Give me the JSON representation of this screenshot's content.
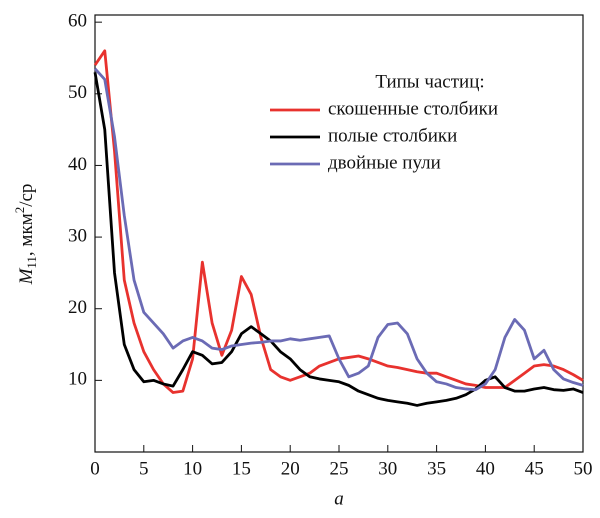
{
  "chart_data": {
    "type": "line",
    "x_label": "a",
    "y_label": {
      "symbol": "M",
      "subscript": "11",
      "unit": ", мкм",
      "superscript": "2",
      "unit_end": "/ср"
    },
    "legend_title": "Типы частиц:",
    "legend": "upper right",
    "x": [
      0,
      1,
      2,
      3,
      4,
      5,
      6,
      7,
      8,
      9,
      10,
      11,
      12,
      13,
      14,
      15,
      16,
      17,
      18,
      19,
      20,
      21,
      22,
      23,
      24,
      25,
      26,
      27,
      28,
      29,
      30,
      31,
      32,
      33,
      34,
      35,
      36,
      37,
      38,
      39,
      40,
      41,
      42,
      43,
      44,
      45,
      46,
      47,
      48,
      49,
      50
    ],
    "series": [
      {
        "name": "скошенные столбики",
        "color": "#e8322e",
        "values": [
          54,
          56,
          42,
          24,
          18,
          14,
          11.5,
          9.5,
          8.3,
          8.5,
          13,
          26.5,
          18,
          13.5,
          17,
          24.5,
          22,
          16,
          11.5,
          10.5,
          10,
          10.5,
          11,
          12,
          12.5,
          13,
          13.2,
          13.4,
          13,
          12.5,
          12,
          11.8,
          11.5,
          11.2,
          11,
          11,
          10.5,
          10,
          9.5,
          9.3,
          9,
          9,
          9,
          10,
          11,
          12,
          12.2,
          12,
          11.5,
          10.8,
          10
        ]
      },
      {
        "name": "полые столбики",
        "color": "#000000",
        "values": [
          53,
          45,
          25,
          15,
          11.5,
          9.8,
          10,
          9.5,
          9.2,
          11.5,
          14,
          13.5,
          12.3,
          12.5,
          14,
          16.5,
          17.5,
          16.5,
          15.5,
          14,
          13,
          11.5,
          10.5,
          10.2,
          10,
          9.8,
          9.3,
          8.5,
          8,
          7.5,
          7.2,
          7,
          6.8,
          6.5,
          6.8,
          7,
          7.2,
          7.5,
          8,
          8.8,
          10,
          10.5,
          9,
          8.5,
          8.5,
          8.8,
          9,
          8.7,
          8.6,
          8.8,
          8.3
        ]
      },
      {
        "name": "двойные пули",
        "color": "#6b6bb5",
        "values": [
          53.5,
          52,
          44,
          33,
          24,
          19.5,
          18,
          16.5,
          14.5,
          15.5,
          16,
          15.5,
          14.5,
          14.3,
          14.8,
          15,
          15.2,
          15.3,
          15.5,
          15.5,
          15.8,
          15.6,
          15.8,
          16,
          16.2,
          13,
          10.5,
          11,
          12,
          16,
          17.8,
          18,
          16.5,
          13,
          11,
          9.8,
          9.5,
          9,
          8.8,
          8.7,
          9.5,
          11.5,
          16,
          18.5,
          17,
          13,
          14.2,
          11.5,
          10.2,
          9.7,
          9.3
        ]
      }
    ],
    "xlim": [
      0,
      50
    ],
    "xticks": [
      0,
      5,
      10,
      15,
      20,
      25,
      30,
      35,
      40,
      45,
      50
    ],
    "ylim": [
      0,
      61
    ],
    "yticks": [
      10,
      20,
      30,
      40,
      50,
      60
    ]
  }
}
